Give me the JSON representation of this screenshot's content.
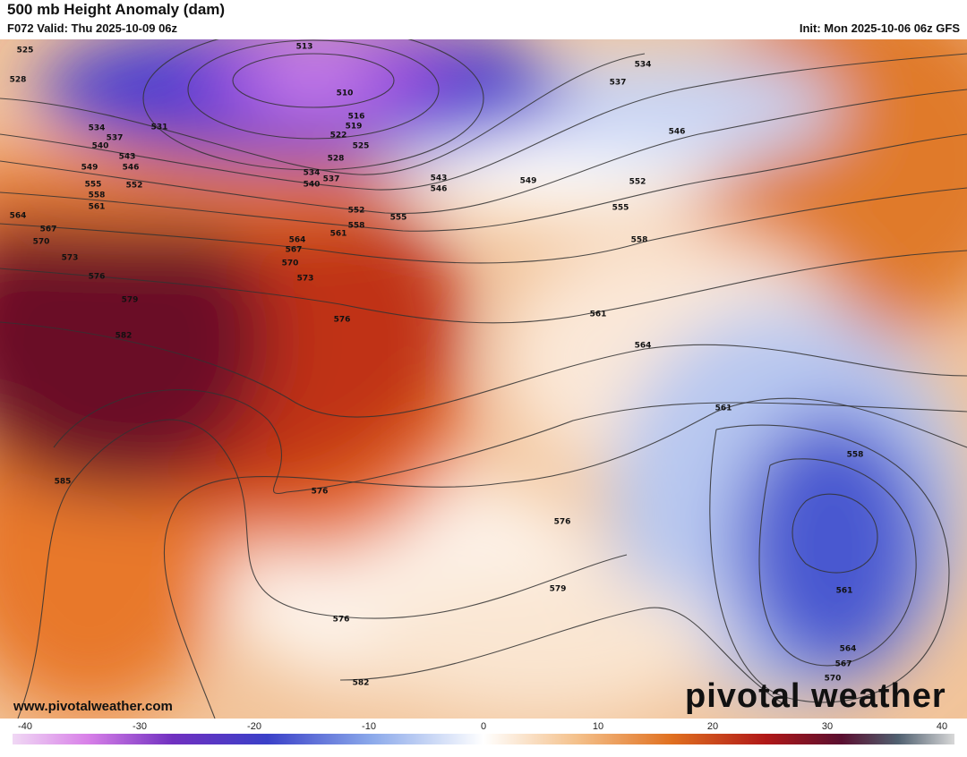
{
  "header": {
    "title": "500 mb Height Anomaly (dam)",
    "valid": "F072 Valid: Thu 2025-10-09 06z",
    "init": "Init: Mon 2025-10-06 06z GFS"
  },
  "contour_labels": [
    513,
    510,
    516,
    519,
    522,
    525,
    528,
    534,
    537,
    540,
    525,
    528,
    534,
    531,
    537,
    540,
    543,
    546,
    549,
    555,
    552,
    558,
    561,
    564,
    567,
    570,
    573,
    576,
    579,
    582,
    585,
    534,
    537,
    546,
    549,
    552,
    543,
    546,
    552,
    555,
    558,
    561,
    564,
    567,
    570,
    573,
    576,
    555,
    558,
    561,
    564,
    561,
    558,
    576,
    576,
    579,
    576,
    561,
    564,
    567,
    570,
    582
  ],
  "colorbar": {
    "ticks": [
      -40,
      -30,
      -20,
      -10,
      0,
      10,
      20,
      30,
      40
    ]
  },
  "footer": {
    "url": "www.pivotalweather.com",
    "logo": "pivotal weather"
  }
}
